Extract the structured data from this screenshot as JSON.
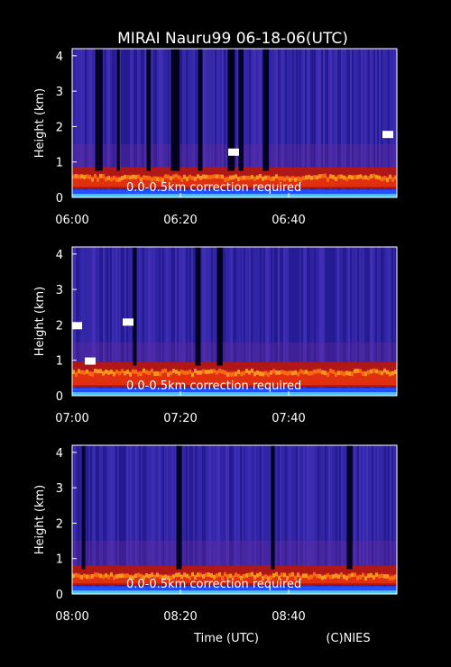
{
  "title": "MIRAI Nauru99 06-18-06(UTC)",
  "xlabel": "Time (UTC)",
  "credit": "(C)NIES",
  "colors": {
    "background": "#000000",
    "text": "#ffffff"
  },
  "chart_data": [
    {
      "type": "heatmap",
      "ylabel": "Height (km)",
      "yticks": [
        "0",
        "1",
        "2",
        "3",
        "4"
      ],
      "xticks": [
        "06:00",
        "06:20",
        "06:40"
      ],
      "xlim": [
        "06:00",
        "07:00"
      ],
      "ylim": [
        0,
        4.2
      ],
      "annotation": "0.0-0.5km correction required",
      "layer_top_km": 0.6,
      "dark_columns_min": [
        4.5,
        5.2,
        8.5,
        14,
        18.5,
        19.2,
        23.5,
        29,
        29.5,
        31,
        35.5
      ],
      "cloud_patches": [
        {
          "t_min": 29.5,
          "h_km": 1.3
        },
        {
          "t_min": 58,
          "h_km": 1.8
        }
      ]
    },
    {
      "type": "heatmap",
      "ylabel": "Height (km)",
      "yticks": [
        "0",
        "1",
        "2",
        "3",
        "4"
      ],
      "xticks": [
        "07:00",
        "07:20",
        "07:40"
      ],
      "xlim": [
        "07:00",
        "08:00"
      ],
      "ylim": [
        0,
        4.2
      ],
      "annotation": "0.0-0.5km correction required",
      "layer_top_km": 0.7,
      "dark_columns_min": [
        11.5,
        23,
        27
      ],
      "cloud_patches": [
        {
          "t_min": 0.5,
          "h_km": 2.0
        },
        {
          "t_min": 10,
          "h_km": 2.1
        },
        {
          "t_min": 3,
          "h_km": 1.0
        }
      ]
    },
    {
      "type": "heatmap",
      "ylabel": "Height (km)",
      "yticks": [
        "0",
        "1",
        "2",
        "3",
        "4"
      ],
      "xticks": [
        "08:00",
        "08:20",
        "08:40"
      ],
      "xlim": [
        "08:00",
        "09:00"
      ],
      "ylim": [
        0,
        4.2
      ],
      "annotation": "0.0-0.5km correction required",
      "layer_top_km": 0.55,
      "dark_columns_min": [
        2,
        19.5,
        37,
        51
      ],
      "cloud_patches": []
    }
  ]
}
